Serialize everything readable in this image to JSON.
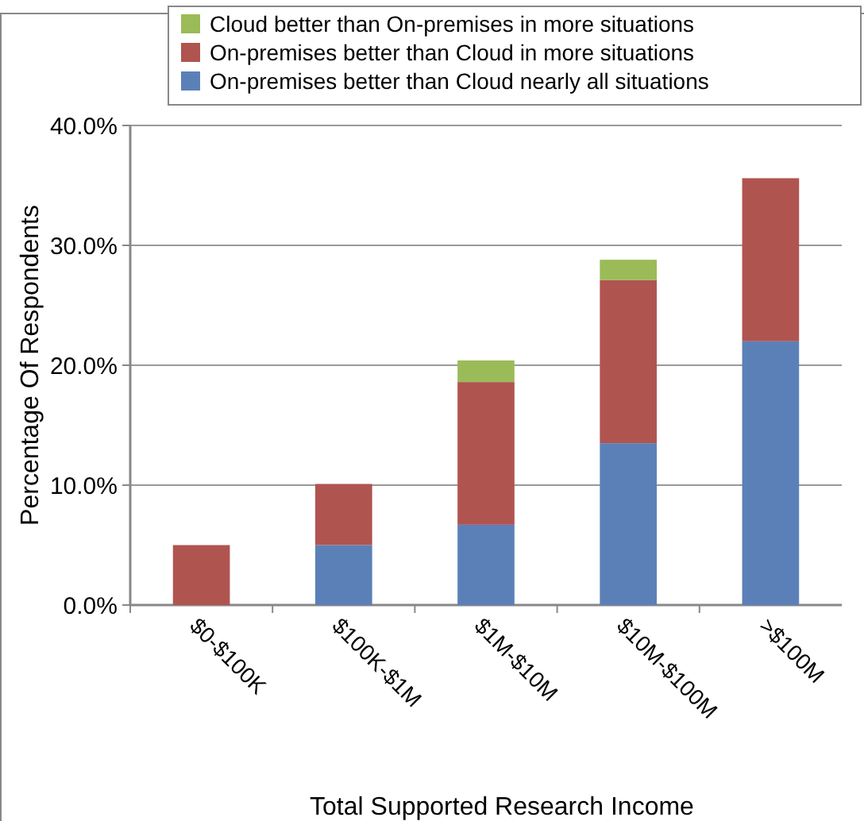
{
  "chart_data": {
    "type": "bar",
    "stacked": true,
    "xlabel": "Total Supported Research Income",
    "ylabel": "Percentage Of Respondents",
    "categories": [
      "$0-$100K",
      "$100K-$1M",
      "$1M-$10M",
      "$10M-$100M",
      ">$100M"
    ],
    "series": [
      {
        "name": "On-premises better than Cloud nearly all situations",
        "color": "#5b80b8",
        "values": [
          0,
          5.0,
          6.7,
          13.5,
          22.0
        ]
      },
      {
        "name": "On-premises better than Cloud in more situations",
        "color": "#b05450",
        "values": [
          5.0,
          5.1,
          11.9,
          13.6,
          13.6
        ]
      },
      {
        "name": "Cloud better than On-premises in more situations",
        "color": "#9bbb59",
        "values": [
          0,
          0,
          1.8,
          1.7,
          0
        ]
      }
    ],
    "ylim": [
      0,
      40
    ],
    "yticks": [
      {
        "value": 0,
        "label": "0.0%"
      },
      {
        "value": 10,
        "label": "10.0%"
      },
      {
        "value": 20,
        "label": "20.0%"
      },
      {
        "value": 30,
        "label": "30.0%"
      },
      {
        "value": 40,
        "label": "40.0%"
      }
    ],
    "grid": "y",
    "legend": "top"
  }
}
